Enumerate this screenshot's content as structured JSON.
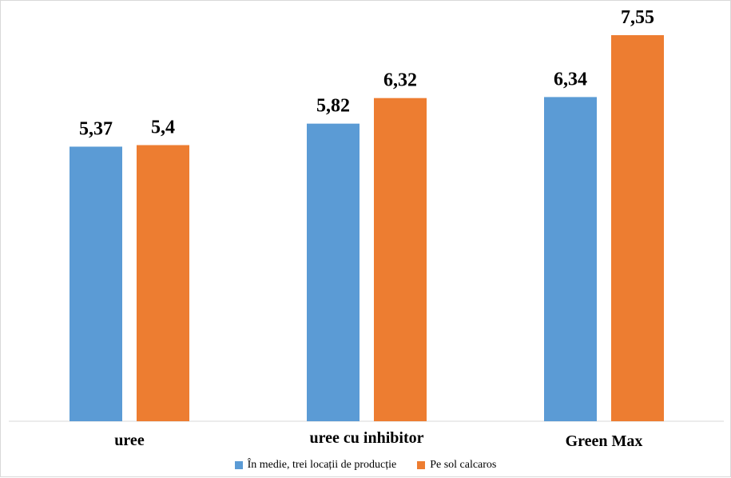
{
  "chart_data": {
    "type": "bar",
    "categories": [
      "uree",
      "uree cu inhibitor",
      "Green Max"
    ],
    "series": [
      {
        "name": "În medie, trei locații de producție",
        "color": "#5b9bd5",
        "values": [
          5.37,
          5.82,
          6.34
        ],
        "labels": [
          "5,37",
          "5,82",
          "6,34"
        ]
      },
      {
        "name": "Pe sol calcaros",
        "color": "#ed7d31",
        "values": [
          5.4,
          6.32,
          7.55
        ],
        "labels": [
          "5,4",
          "6,32",
          "7,55"
        ]
      }
    ],
    "ylim": [
      0,
      7.55
    ],
    "grid": false,
    "legend_position": "bottom"
  }
}
